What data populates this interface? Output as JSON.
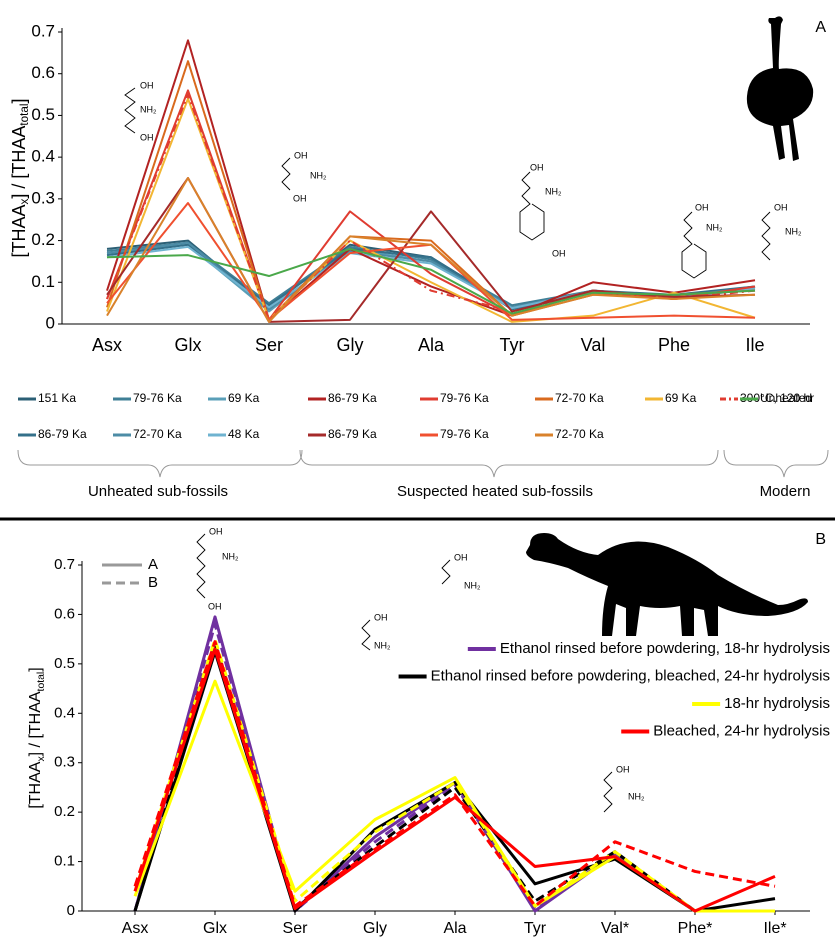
{
  "chart_data": [
    {
      "type": "line",
      "panel_label": "A",
      "y_label": [
        "[THAA",
        "x",
        "] / [THAA",
        "total",
        "]"
      ],
      "categories": [
        "Asx",
        "Glx",
        "Ser",
        "Gly",
        "Ala",
        "Tyr",
        "Val",
        "Phe",
        "Ile"
      ],
      "ylim": [
        0,
        0.7
      ],
      "yticks": [
        0,
        0.1,
        0.2,
        0.3,
        0.4,
        0.5,
        0.6,
        0.7
      ],
      "groups": [
        {
          "label": "Unheated sub-fossils",
          "series": [
            {
              "name": "151 Ka",
              "color": "#2b5f75",
              "style": "solid",
              "values": [
                0.18,
                0.2,
                0.04,
                0.19,
                0.16,
                0.04,
                0.08,
                0.065,
                0.09
              ]
            },
            {
              "name": "79-76 Ka",
              "color": "#3f7f96",
              "style": "solid",
              "values": [
                0.175,
                0.195,
                0.05,
                0.185,
                0.155,
                0.045,
                0.08,
                0.065,
                0.09
              ]
            },
            {
              "name": "69 Ka",
              "color": "#5a9fb8",
              "style": "solid",
              "values": [
                0.17,
                0.19,
                0.03,
                0.18,
                0.15,
                0.04,
                0.075,
                0.06,
                0.085
              ]
            },
            {
              "name": "86-79 Ka",
              "color": "#34708a",
              "style": "solid",
              "values": [
                0.165,
                0.19,
                0.045,
                0.18,
                0.16,
                0.035,
                0.08,
                0.07,
                0.09
              ]
            },
            {
              "name": "72-70 Ka",
              "color": "#4d8ca6",
              "style": "solid",
              "values": [
                0.17,
                0.195,
                0.035,
                0.175,
                0.15,
                0.04,
                0.08,
                0.065,
                0.088
              ]
            },
            {
              "name": "48 Ka",
              "color": "#6fb3d0",
              "style": "solid",
              "values": [
                0.16,
                0.185,
                0.04,
                0.17,
                0.145,
                0.038,
                0.078,
                0.062,
                0.085
              ]
            }
          ]
        },
        {
          "label": "Suspected heated sub-fossils",
          "series": [
            {
              "name": "86-79 Ka",
              "color": "#b22222",
              "style": "solid",
              "values": [
                0.08,
                0.68,
                0.01,
                0.18,
                0.09,
                0.02,
                0.1,
                0.075,
                0.105
              ]
            },
            {
              "name": "79-76 Ka",
              "color": "#e03c31",
              "style": "solid",
              "values": [
                0.06,
                0.56,
                0.01,
                0.27,
                0.12,
                0.02,
                0.08,
                0.06,
                0.09
              ]
            },
            {
              "name": "72-70 Ka",
              "color": "#d96a1e",
              "style": "solid",
              "values": [
                0.04,
                0.63,
                0.01,
                0.21,
                0.2,
                0.02,
                0.07,
                0.07,
                0.08
              ]
            },
            {
              "name": "69 Ka",
              "color": "#f2b632",
              "style": "solid",
              "values": [
                0.03,
                0.54,
                0.01,
                0.2,
                0.1,
                0.005,
                0.02,
                0.075,
                0.015
              ]
            },
            {
              "name": "300°C, 120 hr",
              "color": "#e03c31",
              "style": "dash-dot",
              "values": [
                0.06,
                0.55,
                0.01,
                0.2,
                0.08,
                0.03,
                0.075,
                0.06,
                0.08
              ]
            },
            {
              "name": "86-79 Ka",
              "color": "#a52a2a",
              "style": "solid",
              "values": [
                0.07,
                0.35,
                0.005,
                0.01,
                0.27,
                0.03,
                0.08,
                0.065,
                0.07
              ]
            },
            {
              "name": "79-76 Ka",
              "color": "#f05030",
              "style": "solid",
              "values": [
                0.05,
                0.29,
                0.01,
                0.17,
                0.19,
                0.01,
                0.015,
                0.02,
                0.015
              ]
            },
            {
              "name": "72-70 Ka",
              "color": "#d9822b",
              "style": "solid",
              "values": [
                0.02,
                0.35,
                0.005,
                0.21,
                0.19,
                0.02,
                0.07,
                0.06,
                0.07
              ]
            }
          ]
        },
        {
          "label": "Modern",
          "series": [
            {
              "name": "Unheated",
              "color": "#4aa84a",
              "style": "solid",
              "values": [
                0.16,
                0.165,
                0.115,
                0.18,
                0.13,
                0.025,
                0.075,
                0.07,
                0.08
              ]
            }
          ]
        }
      ],
      "molecules": [
        [
          "OH",
          "NH₂",
          "OH"
        ],
        [
          "OH",
          "NH₂",
          "OH"
        ],
        [
          "OH",
          "NH₂",
          "OH"
        ],
        [
          "OH",
          "NH₂"
        ],
        [
          "OH",
          "NH₂"
        ]
      ]
    },
    {
      "type": "line",
      "panel_label": "B",
      "y_label": [
        "[THAA",
        "x",
        "] / [THAA",
        "total",
        "]"
      ],
      "categories": [
        "Asx",
        "Glx",
        "Ser",
        "Gly",
        "Ala",
        "Tyr",
        "Val*",
        "Phe*",
        "Ile*"
      ],
      "ylim": [
        0,
        0.7
      ],
      "yticks": [
        0,
        0.1,
        0.2,
        0.3,
        0.4,
        0.5,
        0.6,
        0.7
      ],
      "line_styles": [
        {
          "label": "A",
          "style": "solid"
        },
        {
          "label": "B",
          "style": "dashed"
        }
      ],
      "series": [
        {
          "name": "Ethanol rinsed before powdering, 18-hr hydrolysis",
          "color": "#7030a0",
          "runs": [
            {
              "style": "solid",
              "values": [
                0,
                0.595,
                0,
                0.15,
                0.26,
                0,
                0.115,
                0,
                0
              ]
            },
            {
              "style": "dashed",
              "values": [
                0,
                0.58,
                0,
                0.14,
                0.255,
                0.005,
                0.115,
                0,
                0
              ]
            }
          ]
        },
        {
          "name": "Ethanol rinsed before powdering, bleached, 24-hr hydrolysis",
          "color": "#000000",
          "runs": [
            {
              "style": "solid",
              "values": [
                0,
                0.525,
                0,
                0.165,
                0.26,
                0.055,
                0.105,
                0,
                0.025
              ]
            },
            {
              "style": "dashed",
              "values": [
                0,
                0.54,
                0.005,
                0.13,
                0.25,
                0.02,
                0.12,
                0,
                0
              ]
            }
          ]
        },
        {
          "name": "18-hr hydrolysis",
          "color": "#ffff00",
          "runs": [
            {
              "style": "solid",
              "values": [
                0.03,
                0.465,
                0.04,
                0.185,
                0.27,
                0.01,
                0.11,
                0,
                0
              ]
            },
            {
              "style": "dashed",
              "values": [
                0.04,
                0.55,
                0.02,
                0.16,
                0.26,
                0.01,
                0.12,
                0,
                0
              ]
            }
          ]
        },
        {
          "name": "Bleached, 24-hr hydrolysis",
          "color": "#ff0000",
          "runs": [
            {
              "style": "solid",
              "values": [
                0.04,
                0.53,
                0.005,
                0.12,
                0.23,
                0.09,
                0.11,
                0,
                0.07
              ]
            },
            {
              "style": "dashed",
              "values": [
                0.05,
                0.545,
                0.01,
                0.125,
                0.235,
                0.01,
                0.14,
                0.08,
                0.05
              ]
            }
          ]
        }
      ],
      "molecules": [
        [
          "OH",
          "NH₂",
          "OH"
        ],
        [
          "OH",
          "NH₂"
        ],
        [
          "OH",
          "NH₂"
        ],
        [
          "OH",
          "NH₂"
        ]
      ]
    }
  ]
}
